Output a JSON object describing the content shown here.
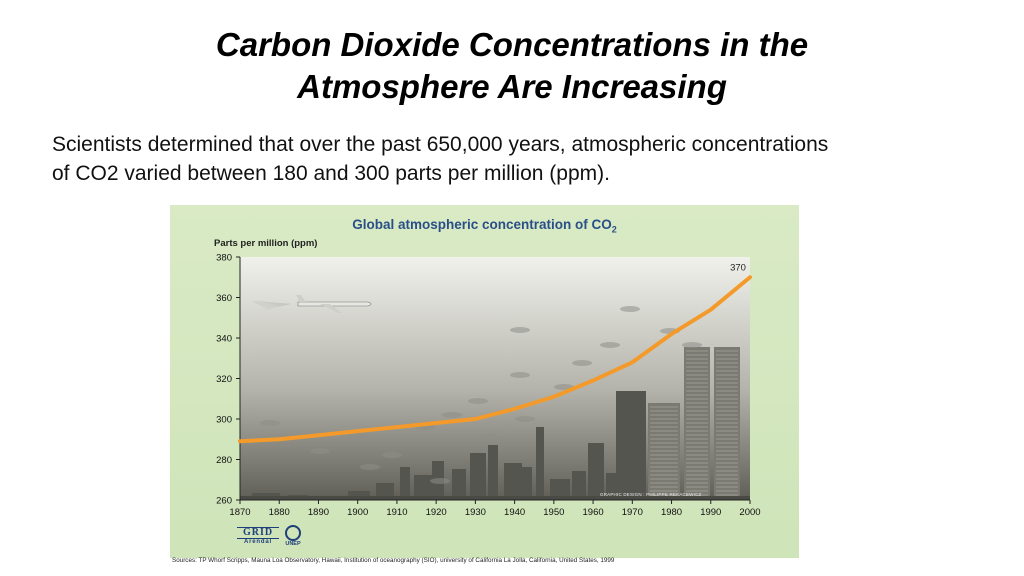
{
  "slide": {
    "title_line1": "Carbon Dioxide Concentrations in the",
    "title_line2": "Atmosphere Are Increasing",
    "body_line1": "Scientists determined that over the past 650,000 years, atmospheric concentrations",
    "body_line2": "of CO2 varied between 180 and 300 parts per million (ppm)."
  },
  "figure": {
    "title": "Global atmospheric concentration of CO",
    "title_subscript": "2",
    "credit": "GRAPHIC DESIGN : PHILIPPE REKACEWICZ",
    "sources": "Sources: TP Whorf  Scripps, Mauna Loa Observatory, Hawaii, Institution of oceanography (SIO), university of California La Jolla, California, United States, 1999",
    "logo_grid_top": "GRID",
    "logo_grid_bottom": "Arendal",
    "logo_unep": "UNEP"
  },
  "colors": {
    "curve": "#f39a2b",
    "plot_bg_top": "#f1f1ec",
    "plot_bg_bottom": "#5f5f57",
    "title_blue": "#2a4f86"
  },
  "chart_data": {
    "type": "line",
    "title": "Global atmospheric concentration of CO2",
    "ylabel": "Parts per million (ppm)",
    "xlabel": "",
    "x": [
      1870,
      1880,
      1890,
      1900,
      1910,
      1920,
      1930,
      1940,
      1950,
      1960,
      1970,
      1980,
      1990,
      2000
    ],
    "series": [
      {
        "values": [
          289,
          290,
          292,
          294,
          296,
          298,
          300,
          305,
          311,
          319,
          328,
          342,
          354,
          370
        ]
      }
    ],
    "xlim": [
      1870,
      2000
    ],
    "ylim": [
      260,
      380
    ],
    "xticks": [
      "1870",
      "1880",
      "1890",
      "1900",
      "1910",
      "1920",
      "1930",
      "1940",
      "1950",
      "1960",
      "1970",
      "1980",
      "1990",
      "2000"
    ],
    "yticks": [
      "260",
      "280",
      "300",
      "320",
      "340",
      "360",
      "380"
    ],
    "annotations": [
      {
        "x": 2000,
        "text": "370"
      }
    ],
    "grid": false,
    "legend": "none"
  }
}
